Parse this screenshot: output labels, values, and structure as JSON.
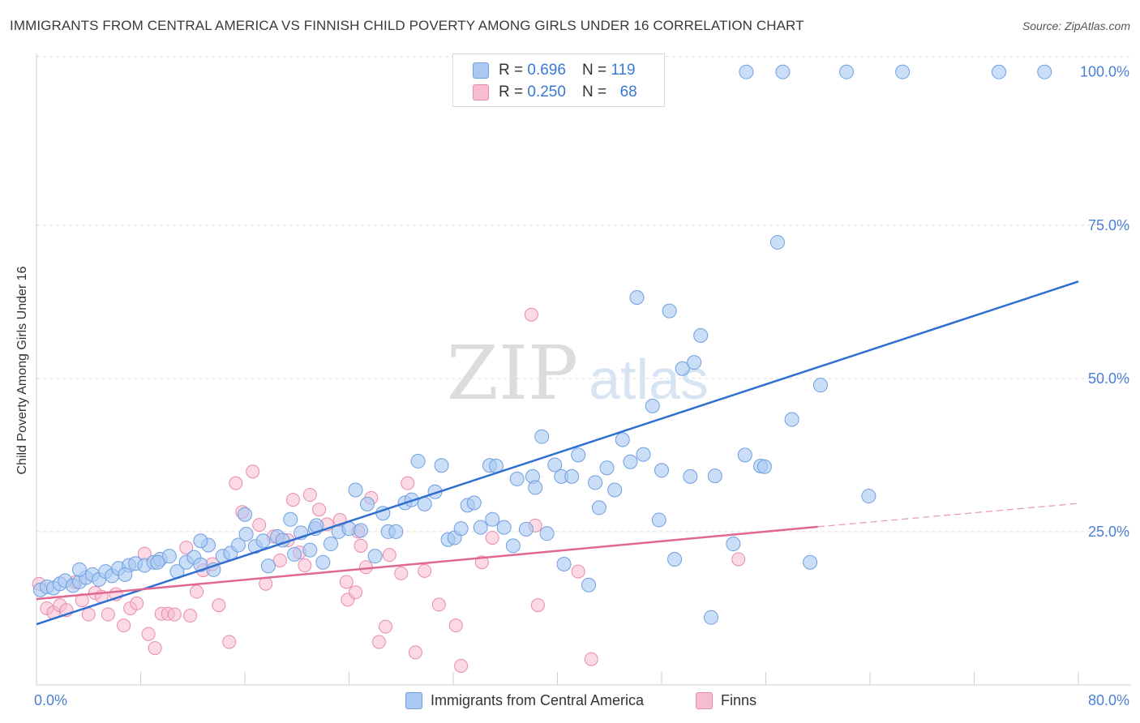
{
  "title": "IMMIGRANTS FROM CENTRAL AMERICA VS FINNISH CHILD POVERTY AMONG GIRLS UNDER 16 CORRELATION CHART",
  "source": "Source: ZipAtlas.com",
  "watermark": {
    "zip": "ZIP",
    "atlas": "atlas"
  },
  "legend": {
    "rows": [
      {
        "r_label": "R =",
        "r_value": "0.696",
        "n_label": "N =",
        "n_value": "119"
      },
      {
        "r_label": "R =",
        "r_value": "0.250",
        "n_label": "N =",
        "n_value": "68"
      }
    ]
  },
  "bottom_legend": [
    "Immigrants from Central America",
    "Finns"
  ],
  "colors": {
    "blue_fill": "#a9c8f2",
    "blue_stroke": "#6f9fe0",
    "blue_line": "#2f6fd0",
    "pink_fill": "#f7bcd0",
    "pink_stroke": "#e98aaa",
    "pink_line": "#e06890",
    "axis_text": "#4a7fd6",
    "grid": "#dcdcdc"
  },
  "chart_data": {
    "type": "scatter",
    "title": "IMMIGRANTS FROM CENTRAL AMERICA VS FINNISH CHILD POVERTY AMONG GIRLS UNDER 16 CORRELATION CHART",
    "xlabel": "",
    "ylabel": "Child Poverty Among Girls Under 16",
    "xlim": [
      0,
      80
    ],
    "ylim": [
      0,
      103
    ],
    "x_tick_labels": [
      "0.0%",
      "80.0%"
    ],
    "y_ticks": [
      25,
      50,
      75,
      100
    ],
    "y_tick_labels": [
      "25.0%",
      "50.0%",
      "75.0%",
      "100.0%"
    ],
    "grid": true,
    "legend_placement": "top-center",
    "series": [
      {
        "name": "Immigrants from Central America",
        "r": 0.696,
        "n": 119,
        "trend": {
          "x0": 0,
          "y0": 9.9,
          "x1": 80,
          "y1": 65.8
        },
        "points": [
          [
            0.3,
            15.5
          ],
          [
            0.8,
            16
          ],
          [
            1.3,
            15.8
          ],
          [
            1.8,
            16.5
          ],
          [
            2.2,
            17
          ],
          [
            2.8,
            16.2
          ],
          [
            3.3,
            16.8
          ],
          [
            3.8,
            17.5
          ],
          [
            4.3,
            18
          ],
          [
            4.8,
            17.2
          ],
          [
            3.3,
            18.8
          ],
          [
            5.3,
            18.5
          ],
          [
            5.8,
            17.8
          ],
          [
            6.3,
            19
          ],
          [
            7.1,
            19.5
          ],
          [
            7.6,
            19.8
          ],
          [
            8.3,
            19.5
          ],
          [
            9.0,
            20
          ],
          [
            9.5,
            20.5
          ],
          [
            10.2,
            21
          ],
          [
            10.8,
            18.5
          ],
          [
            11.5,
            20
          ],
          [
            12.1,
            20.8
          ],
          [
            12.6,
            19.6
          ],
          [
            13.2,
            22.8
          ],
          [
            13.6,
            18.8
          ],
          [
            14.3,
            21
          ],
          [
            14.9,
            21.5
          ],
          [
            15.5,
            22.8
          ],
          [
            16.1,
            24.6
          ],
          [
            16.8,
            22.6
          ],
          [
            17.4,
            23.5
          ],
          [
            17.8,
            19.4
          ],
          [
            18.5,
            24.2
          ],
          [
            18.9,
            23.6
          ],
          [
            19.5,
            27.0
          ],
          [
            19.8,
            21.3
          ],
          [
            20.3,
            24.8
          ],
          [
            21.0,
            22
          ],
          [
            21.4,
            25.5
          ],
          [
            22.0,
            20
          ],
          [
            22.6,
            23
          ],
          [
            23.2,
            25
          ],
          [
            24.0,
            25.5
          ],
          [
            24.5,
            31.8
          ],
          [
            24.9,
            25.2
          ],
          [
            25.4,
            29.5
          ],
          [
            26.0,
            21
          ],
          [
            26.6,
            28
          ],
          [
            27.0,
            25
          ],
          [
            27.6,
            25
          ],
          [
            28.3,
            29.7
          ],
          [
            28.8,
            30.2
          ],
          [
            29.3,
            36.5
          ],
          [
            29.8,
            29.5
          ],
          [
            30.6,
            31.5
          ],
          [
            31.1,
            35.8
          ],
          [
            31.6,
            23.7
          ],
          [
            32.1,
            24
          ],
          [
            32.6,
            25.5
          ],
          [
            33.1,
            29.3
          ],
          [
            33.6,
            29.7
          ],
          [
            34.1,
            25.7
          ],
          [
            34.8,
            35.8
          ],
          [
            35.3,
            35.7
          ],
          [
            35.9,
            25.7
          ],
          [
            36.6,
            22.7
          ],
          [
            36.9,
            33.6
          ],
          [
            37.6,
            25.4
          ],
          [
            38.1,
            34.0
          ],
          [
            38.3,
            32.2
          ],
          [
            38.8,
            40.5
          ],
          [
            39.2,
            24.7
          ],
          [
            39.8,
            35.9
          ],
          [
            40.3,
            34.0
          ],
          [
            41.1,
            34.0
          ],
          [
            41.6,
            37.5
          ],
          [
            42.4,
            16.3
          ],
          [
            42.9,
            33.0
          ],
          [
            43.2,
            28.9
          ],
          [
            43.8,
            35.4
          ],
          [
            44.4,
            31.8
          ],
          [
            45.0,
            40.0
          ],
          [
            45.6,
            36.4
          ],
          [
            46.1,
            63.2
          ],
          [
            46.6,
            37.6
          ],
          [
            47.3,
            45.5
          ],
          [
            47.8,
            26.9
          ],
          [
            48.6,
            61.0
          ],
          [
            49.0,
            20.5
          ],
          [
            49.6,
            51.6
          ],
          [
            50.2,
            34.0
          ],
          [
            51.0,
            57.0
          ],
          [
            50.5,
            52.6
          ],
          [
            51.8,
            11.0
          ],
          [
            52.1,
            34.1
          ],
          [
            53.5,
            23.0
          ],
          [
            54.4,
            37.5
          ],
          [
            55.6,
            35.7
          ],
          [
            55.9,
            35.6
          ],
          [
            56.9,
            72.2
          ],
          [
            58.0,
            43.3
          ],
          [
            59.4,
            20.0
          ],
          [
            60.2,
            48.9
          ],
          [
            63.9,
            30.8
          ],
          [
            54.5,
            100
          ],
          [
            57.3,
            100
          ],
          [
            62.2,
            100
          ],
          [
            66.5,
            100
          ],
          [
            73.9,
            100
          ],
          [
            77.4,
            100
          ],
          [
            40.5,
            19.7
          ],
          [
            35.0,
            27.0
          ],
          [
            21.5,
            26.0
          ],
          [
            16.0,
            27.8
          ],
          [
            9.3,
            20.0
          ],
          [
            6.8,
            18.0
          ],
          [
            12.6,
            23.5
          ],
          [
            48.0,
            35.0
          ]
        ]
      },
      {
        "name": "Finns",
        "r": 0.25,
        "n": 68,
        "trend": {
          "x0": 0,
          "y0": 14.0,
          "x1": 60,
          "y1": 25.8
        },
        "trend_dashed_to": {
          "x": 80,
          "y": 29.6
        },
        "points": [
          [
            0.2,
            16.5
          ],
          [
            0.8,
            12.5
          ],
          [
            1.3,
            11.8
          ],
          [
            1.8,
            13
          ],
          [
            2.3,
            12.2
          ],
          [
            3.0,
            16.8
          ],
          [
            3.5,
            13.8
          ],
          [
            4.0,
            11.5
          ],
          [
            4.5,
            15
          ],
          [
            5.0,
            14.4
          ],
          [
            5.5,
            11.5
          ],
          [
            6.1,
            14.8
          ],
          [
            6.7,
            9.7
          ],
          [
            7.2,
            12.5
          ],
          [
            7.7,
            13.3
          ],
          [
            8.3,
            21.4
          ],
          [
            8.6,
            8.3
          ],
          [
            9.1,
            6.0
          ],
          [
            9.6,
            11.6
          ],
          [
            10.1,
            11.6
          ],
          [
            10.6,
            11.5
          ],
          [
            11.5,
            22.4
          ],
          [
            11.8,
            11.3
          ],
          [
            12.3,
            15.2
          ],
          [
            12.8,
            18.7
          ],
          [
            13.5,
            19.7
          ],
          [
            14.0,
            13.0
          ],
          [
            14.8,
            7.0
          ],
          [
            15.3,
            32.9
          ],
          [
            15.8,
            28.2
          ],
          [
            16.6,
            34.8
          ],
          [
            17.1,
            26.1
          ],
          [
            17.6,
            16.5
          ],
          [
            18.2,
            24.2
          ],
          [
            18.7,
            20.3
          ],
          [
            19.3,
            23.6
          ],
          [
            19.7,
            30.2
          ],
          [
            20.2,
            21.6
          ],
          [
            20.6,
            19.5
          ],
          [
            21.0,
            31.0
          ],
          [
            21.7,
            28.6
          ],
          [
            22.3,
            26.2
          ],
          [
            23.3,
            26.9
          ],
          [
            23.9,
            13.9
          ],
          [
            24.5,
            15.1
          ],
          [
            24.7,
            25.0
          ],
          [
            24.9,
            22.7
          ],
          [
            25.3,
            19.2
          ],
          [
            25.7,
            30.5
          ],
          [
            26.3,
            7.0
          ],
          [
            26.8,
            9.5
          ],
          [
            27.1,
            21.2
          ],
          [
            28.0,
            18.2
          ],
          [
            28.5,
            32.9
          ],
          [
            29.1,
            5.3
          ],
          [
            29.8,
            18.6
          ],
          [
            30.9,
            13.1
          ],
          [
            32.2,
            9.7
          ],
          [
            32.6,
            3.1
          ],
          [
            35.0,
            24.0
          ],
          [
            38.0,
            60.4
          ],
          [
            38.3,
            26.0
          ],
          [
            38.5,
            13.0
          ],
          [
            41.6,
            18.5
          ],
          [
            42.6,
            4.2
          ],
          [
            53.9,
            20.5
          ],
          [
            34.2,
            20.0
          ],
          [
            23.8,
            16.8
          ]
        ]
      }
    ]
  }
}
